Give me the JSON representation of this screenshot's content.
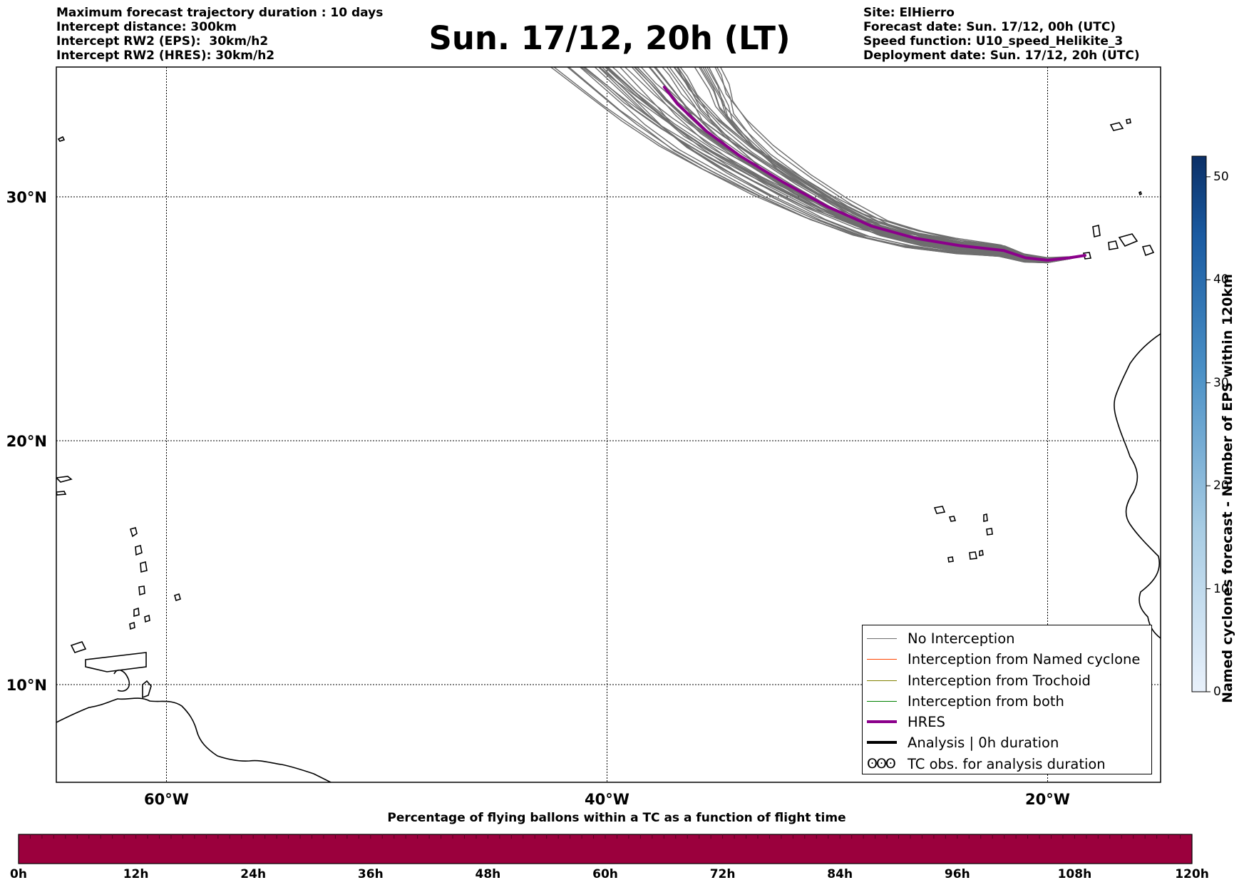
{
  "title": "Sun. 17/12, 20h (LT)",
  "info_left": [
    "Maximum forecast trajectory duration : 10 days",
    "Intercept distance: 300km",
    "Intercept RW2 (EPS):  30km/h2",
    "Intercept RW2 (HRES): 30km/h2"
  ],
  "info_right": [
    "Site: ElHierro",
    "Forecast date: Sun. 17/12, 00h (UTC)",
    "Speed function: U10_speed_Helikite_3",
    "Deployment date: Sun. 17/12, 20h (UTC)"
  ],
  "map": {
    "lon_range": [
      -65,
      -15
    ],
    "lat_range": [
      5,
      34.5
    ],
    "lon_ticks": [
      {
        "value": -60,
        "label": "60°W"
      },
      {
        "value": -40,
        "label": "40°W"
      },
      {
        "value": -20,
        "label": "20°W"
      }
    ],
    "lat_ticks": [
      {
        "value": 30,
        "label": "30°N"
      },
      {
        "value": 20,
        "label": "20°N"
      },
      {
        "value": 10,
        "label": "10°N"
      }
    ],
    "grid": true,
    "colors": {
      "eps": "#6e6e6e",
      "hres": "#8b008b",
      "coast": "#000000"
    },
    "hres_track": [
      [
        -18.3,
        27.6
      ],
      [
        -19,
        27.5
      ],
      [
        -20,
        27.4
      ],
      [
        -21,
        27.5
      ],
      [
        -22,
        27.8
      ],
      [
        -24,
        28
      ],
      [
        -26,
        28.3
      ],
      [
        -28,
        28.8
      ],
      [
        -30,
        29.6
      ],
      [
        -32,
        30.6
      ],
      [
        -34,
        31.7
      ],
      [
        -35.5,
        32.7
      ],
      [
        -36.8,
        33.8
      ],
      [
        -37.4,
        34.5
      ]
    ]
  },
  "legend": [
    {
      "label": "No Interception",
      "color": "#6e6e6e",
      "style": "thin"
    },
    {
      "label": "Interception from Named cyclone",
      "color": "#ff4500",
      "style": "thin"
    },
    {
      "label": "Interception from Trochoid",
      "color": "#808000",
      "style": "thin"
    },
    {
      "label": "Interception from both",
      "color": "#008000",
      "style": "thin"
    },
    {
      "label": "HRES",
      "color": "#8b008b",
      "style": "thick"
    },
    {
      "label": "Analysis | 0h duration",
      "color": "#000000",
      "style": "thick"
    },
    {
      "label": "TC obs. for analysis duration",
      "color": "#000000",
      "style": "glyph",
      "glyph": "ʘʘʘ"
    }
  ],
  "colorbar": {
    "label": "Named cyclones forecast - Number of EPS within 120km",
    "range": [
      0,
      52
    ],
    "ticks": [
      "0",
      "10",
      "20",
      "30",
      "40",
      "50"
    ],
    "colors": {
      "low": "#e5eef9",
      "high": "#0c3268"
    }
  },
  "flight_bar": {
    "caption": "Percentage of flying ballons within a TC as a function of flight time",
    "color": "#9b003d",
    "ticks": [
      "0h",
      "12h",
      "24h",
      "36h",
      "48h",
      "60h",
      "72h",
      "84h",
      "96h",
      "108h",
      "120h"
    ]
  }
}
